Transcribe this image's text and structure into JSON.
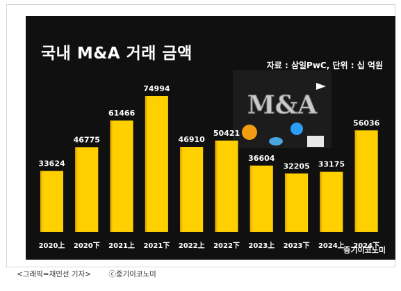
{
  "caption": {
    "credit": "<그래픽=채민선 기자>",
    "copyright": "ⓒ중기이코노미"
  },
  "chart_meta": {
    "source_note": "자료 : 삼일PwC, 단위 : 십 억원",
    "brand": "중기이코노미",
    "illustration_text": "M&A"
  },
  "colors": {
    "background": "#101010",
    "bar": "#ffd000",
    "bar_edge": "#f0b400",
    "text": "#ffffff"
  },
  "chart_data": {
    "type": "bar",
    "title": "국내 M&A 거래 금액",
    "categories": [
      "2020上",
      "2020下",
      "2021上",
      "2021下",
      "2022上",
      "2022下",
      "2023上",
      "2023下",
      "2024上",
      "2024下"
    ],
    "values": [
      33624,
      46775,
      61466,
      74994,
      46910,
      50421,
      36604,
      32205,
      33175,
      56036
    ],
    "value_labels": [
      "33624",
      "46775",
      "61466",
      "74994",
      "46910",
      "50421",
      "36604",
      "32205",
      "33175",
      "56036"
    ],
    "ylim": [
      0,
      75000
    ],
    "grid": false,
    "legend": "none"
  }
}
